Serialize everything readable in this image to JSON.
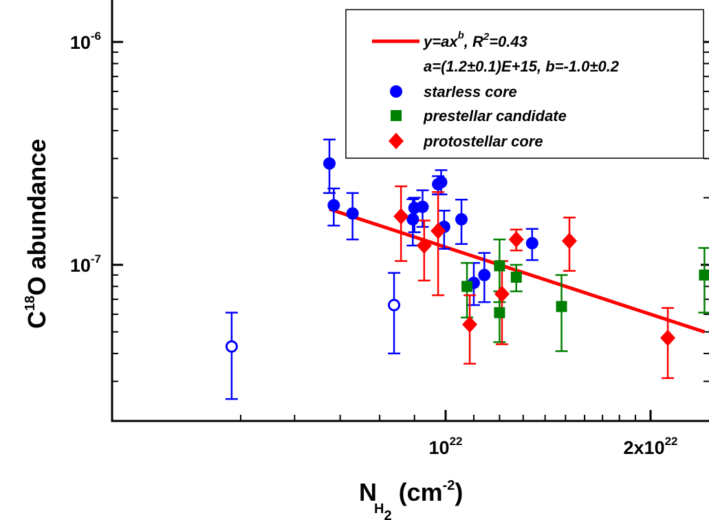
{
  "chart_data": {
    "type": "scatter",
    "x_scale": "log",
    "y_scale": "log",
    "xlim": [
      4.2e+21,
      2.45e+22
    ],
    "ylim": [
      2e-08,
      1.5e-06
    ],
    "x_axis": {
      "label_main": "N",
      "label_sub_1": "H",
      "label_sub_2": "2",
      "label_units": " (cm",
      "label_units_sup": "-2",
      "label_units_end": ")",
      "ticks": [
        {
          "value": 1e+22,
          "mantissa": "",
          "base": "10",
          "exp": "22"
        },
        {
          "value": 2e+22,
          "mantissa": "2x",
          "base": "10",
          "exp": "22"
        }
      ],
      "minor_ticks": [
        5e+21,
        6e+21,
        7e+21,
        8e+21,
        9e+21,
        1.1e+22,
        1.2e+22,
        1.3e+22,
        1.4e+22,
        1.5e+22,
        1.6e+22,
        1.7e+22,
        1.8e+22,
        1.9e+22
      ]
    },
    "y_axis": {
      "label_main": "C",
      "label_sup": "18",
      "label_rest": "O abundance",
      "ticks": [
        {
          "value": 1e-06,
          "base": "10",
          "exp": "-6"
        },
        {
          "value": 1e-07,
          "base": "10",
          "exp": "-7"
        }
      ],
      "minor_ticks": [
        3e-08,
        4e-08,
        5e-08,
        6e-08,
        7e-08,
        8e-08,
        9e-08,
        2e-07,
        3e-07,
        4e-07,
        5e-07,
        6e-07,
        7e-07,
        8e-07,
        9e-07
      ]
    },
    "fit": {
      "a": 1200000000000000.0,
      "b": -1.0,
      "x_range": [
        6.75e+21,
        2.4e+22
      ],
      "color": "#ff0000"
    },
    "legend": {
      "position": "top-right",
      "fit_label_parts": [
        "y=ax",
        "b",
        ", R",
        "2",
        "=0.43"
      ],
      "fit_params": "a=(1.2±0.1)E+15, b=-1.0±0.2",
      "entries": [
        {
          "label": "starless core",
          "marker": "circle",
          "color": "#0000ff"
        },
        {
          "label": "prestellar candidate",
          "marker": "square",
          "color": "#007f00"
        },
        {
          "label": "protostellar core",
          "marker": "diamond",
          "color": "#ff0000"
        }
      ]
    },
    "series": [
      {
        "name": "starless core",
        "marker": "circle",
        "color": "#0000ff",
        "points": [
          {
            "x": 6.75e+21,
            "y": 2.85e-07,
            "lo": 2.1e-07,
            "hi": 3.65e-07
          },
          {
            "x": 6.85e+21,
            "y": 1.85e-07,
            "lo": 1.5e-07,
            "hi": 2.2e-07
          },
          {
            "x": 7.3e+21,
            "y": 1.7e-07,
            "lo": 1.3e-07,
            "hi": 2.1e-07
          },
          {
            "x": 8.95e+21,
            "y": 1.6e-07,
            "lo": 1.22e-07,
            "hi": 1.97e-07
          },
          {
            "x": 9e+21,
            "y": 1.8e-07,
            "lo": 1.4e-07,
            "hi": 2e-07
          },
          {
            "x": 9.25e+21,
            "y": 1.82e-07,
            "lo": 1.48e-07,
            "hi": 2.16e-07
          },
          {
            "x": 9.75e+21,
            "y": 2.3e-07,
            "lo": 2.07e-07,
            "hi": 2.5e-07
          },
          {
            "x": 9.85e+21,
            "y": 2.35e-07,
            "lo": 2.07e-07,
            "hi": 2.66e-07
          },
          {
            "x": 9.95e+21,
            "y": 1.48e-07,
            "lo": 1.18e-07,
            "hi": 1.75e-07
          },
          {
            "x": 1.055e+22,
            "y": 1.6e-07,
            "lo": 1.24e-07,
            "hi": 1.96e-07
          },
          {
            "x": 1.1e+22,
            "y": 8.3e-08,
            "lo": 6.6e-08,
            "hi": 1.02e-07
          },
          {
            "x": 1.14e+22,
            "y": 9e-08,
            "lo": 6.8e-08,
            "hi": 1.13e-07
          },
          {
            "x": 1.34e+22,
            "y": 1.25e-07,
            "lo": 1.05e-07,
            "hi": 1.45e-07
          }
        ]
      },
      {
        "name": "",
        "marker": "open-circle",
        "color": "#0000ff",
        "points": [
          {
            "x": 4.85e+21,
            "y": 4.3e-08,
            "lo": 2.5e-08,
            "hi": 6.1e-08
          },
          {
            "x": 8.4e+21,
            "y": 6.6e-08,
            "lo": 4e-08,
            "hi": 9.2e-08
          }
        ]
      },
      {
        "name": "prestellar candidate",
        "marker": "square",
        "color": "#007f00",
        "points": [
          {
            "x": 1.075e+22,
            "y": 8e-08,
            "lo": 5.8e-08,
            "hi": 1.02e-07
          },
          {
            "x": 1.2e+22,
            "y": 9.9e-08,
            "lo": 6.8e-08,
            "hi": 1.3e-07
          },
          {
            "x": 1.2e+22,
            "y": 6.1e-08,
            "lo": 4.5e-08,
            "hi": 7.6e-08
          },
          {
            "x": 1.27e+22,
            "y": 8.8e-08,
            "lo": 7.6e-08,
            "hi": 1e-07
          },
          {
            "x": 1.48e+22,
            "y": 6.5e-08,
            "lo": 4.1e-08,
            "hi": 9e-08
          },
          {
            "x": 2.4e+22,
            "y": 9e-08,
            "lo": 6.1e-08,
            "hi": 1.19e-07
          }
        ]
      },
      {
        "name": "protostellar core",
        "marker": "diamond",
        "color": "#ff0000",
        "points": [
          {
            "x": 8.6e+21,
            "y": 1.65e-07,
            "lo": 1.04e-07,
            "hi": 2.25e-07
          },
          {
            "x": 9.3e+21,
            "y": 1.22e-07,
            "lo": 8.5e-08,
            "hi": 1.58e-07
          },
          {
            "x": 9.75e+21,
            "y": 1.42e-07,
            "lo": 7.3e-08,
            "hi": 2.12e-07
          },
          {
            "x": 1.085e+22,
            "y": 5.4e-08,
            "lo": 3.6e-08,
            "hi": 7.3e-08
          },
          {
            "x": 1.21e+22,
            "y": 7.4e-08,
            "lo": 4.4e-08,
            "hi": 1.04e-07
          },
          {
            "x": 1.27e+22,
            "y": 1.3e-07,
            "lo": 1.16e-07,
            "hi": 1.44e-07
          },
          {
            "x": 1.52e+22,
            "y": 1.28e-07,
            "lo": 9.4e-08,
            "hi": 1.63e-07
          },
          {
            "x": 2.12e+22,
            "y": 4.7e-08,
            "lo": 3.1e-08,
            "hi": 6.4e-08
          }
        ]
      }
    ]
  }
}
